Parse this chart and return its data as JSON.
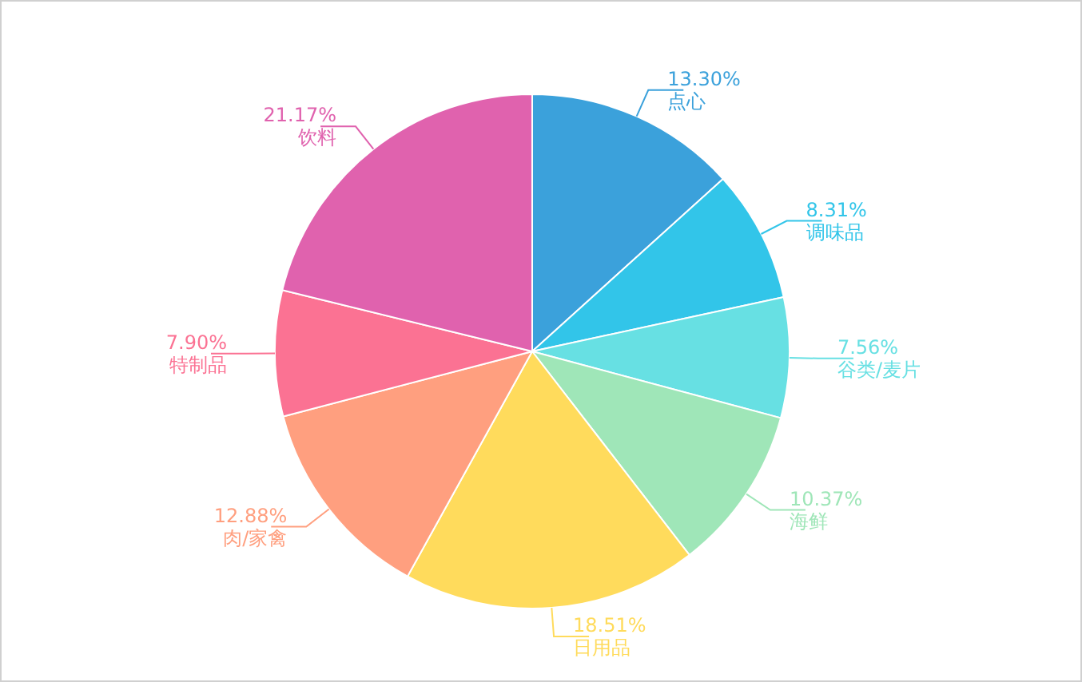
{
  "chart_data": {
    "type": "pie",
    "value_labels": [
      "13.30%",
      "8.31%",
      "7.56%",
      "10.37%",
      "18.51%",
      "12.88%",
      "7.90%",
      "21.17%"
    ],
    "categories": [
      "点心",
      "调味品",
      "谷类/麦片",
      "海鲜",
      "日用品",
      "肉/家禽",
      "特制品",
      "饮料"
    ],
    "values": [
      13.3,
      8.31,
      7.56,
      10.37,
      18.51,
      12.88,
      7.9,
      21.17
    ],
    "colors": [
      "#3ba1db",
      "#32c5e9",
      "#67e0e3",
      "#9fe6b8",
      "#ffdb5c",
      "#ff9f7f",
      "#fb7293",
      "#e062ae"
    ]
  }
}
